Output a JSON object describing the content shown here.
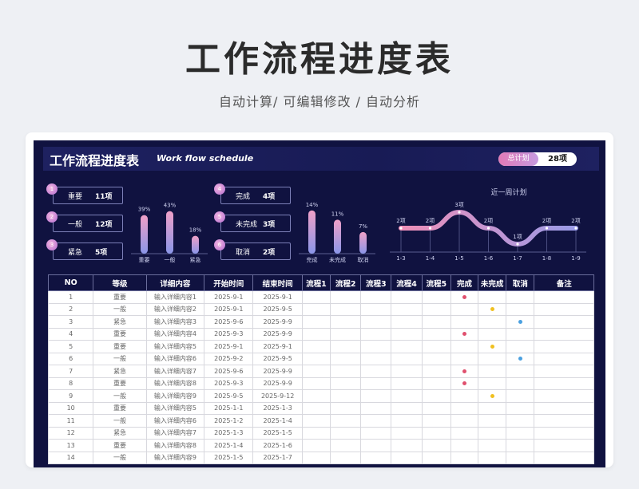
{
  "page": {
    "title": "工作流程进度表",
    "subtitle": "自动计算/ 可编辑修改 / 自动分析"
  },
  "sheet": {
    "title": "工作流程进度表",
    "subtitle": "Work flow schedule",
    "total_label": "总计划",
    "total_value": "28项"
  },
  "priority_kpis": [
    {
      "badge": "1",
      "name": "重要",
      "value": "11项"
    },
    {
      "badge": "2",
      "name": "一般",
      "value": "12项"
    },
    {
      "badge": "3",
      "name": "紧急",
      "value": "5项"
    }
  ],
  "status_kpis": [
    {
      "badge": "4",
      "name": "完成",
      "value": "4项"
    },
    {
      "badge": "5",
      "name": "未完成",
      "value": "3项"
    },
    {
      "badge": "6",
      "name": "取消",
      "value": "2项"
    }
  ],
  "colors": {
    "dot_done": "#e0506e",
    "dot_pending": "#f0c020",
    "dot_cancel": "#4aa0e0",
    "bar_top": "#f0a0c8",
    "bar_bottom": "#8a96e8"
  },
  "chart_data": [
    {
      "type": "bar",
      "categories": [
        "重要",
        "一般",
        "紧急"
      ],
      "values": [
        39,
        43,
        18
      ],
      "labels": [
        "39%",
        "43%",
        "18%"
      ],
      "ylim": [
        0,
        50
      ]
    },
    {
      "type": "bar",
      "categories": [
        "完成",
        "未完成",
        "取消"
      ],
      "values": [
        14,
        11,
        7
      ],
      "labels": [
        "14%",
        "11%",
        "7%"
      ],
      "ylim": [
        0,
        16
      ]
    },
    {
      "type": "line",
      "title": "近一周计划",
      "categories": [
        "1-3",
        "1-4",
        "1-5",
        "1-6",
        "1-7",
        "1-8",
        "1-9"
      ],
      "values": [
        2,
        2,
        3,
        2,
        1,
        2,
        2
      ],
      "labels": [
        "2项",
        "2项",
        "3项",
        "2项",
        "1项",
        "2项",
        "2项"
      ],
      "ylim": [
        0,
        4
      ]
    }
  ],
  "table": {
    "headers": [
      "NO",
      "等级",
      "详细内容",
      "开始时间",
      "结束时间",
      "流程1",
      "流程2",
      "流程3",
      "流程4",
      "流程5",
      "完成",
      "未完成",
      "取消",
      "备注"
    ],
    "rows": [
      {
        "no": "1",
        "level": "重要",
        "detail": "输入详细内容1",
        "start": "2025-9-1",
        "end": "2025-9-1",
        "status": "done"
      },
      {
        "no": "2",
        "level": "一般",
        "detail": "输入详细内容2",
        "start": "2025-9-1",
        "end": "2025-9-5",
        "status": "pending"
      },
      {
        "no": "3",
        "level": "紧急",
        "detail": "输入详细内容3",
        "start": "2025-9-6",
        "end": "2025-9-9",
        "status": "cancel"
      },
      {
        "no": "4",
        "level": "重要",
        "detail": "输入详细内容4",
        "start": "2025-9-3",
        "end": "2025-9-9",
        "status": "done"
      },
      {
        "no": "5",
        "level": "重要",
        "detail": "输入详细内容5",
        "start": "2025-9-1",
        "end": "2025-9-1",
        "status": "pending"
      },
      {
        "no": "6",
        "level": "一般",
        "detail": "输入详细内容6",
        "start": "2025-9-2",
        "end": "2025-9-5",
        "status": "cancel"
      },
      {
        "no": "7",
        "level": "紧急",
        "detail": "输入详细内容7",
        "start": "2025-9-6",
        "end": "2025-9-9",
        "status": "done"
      },
      {
        "no": "8",
        "level": "重要",
        "detail": "输入详细内容8",
        "start": "2025-9-3",
        "end": "2025-9-9",
        "status": "done"
      },
      {
        "no": "9",
        "level": "一般",
        "detail": "输入详细内容9",
        "start": "2025-9-5",
        "end": "2025-9-12",
        "status": "pending"
      },
      {
        "no": "10",
        "level": "重要",
        "detail": "输入详细内容5",
        "start": "2025-1-1",
        "end": "2025-1-3",
        "status": ""
      },
      {
        "no": "11",
        "level": "一般",
        "detail": "输入详细内容6",
        "start": "2025-1-2",
        "end": "2025-1-4",
        "status": ""
      },
      {
        "no": "12",
        "level": "紧急",
        "detail": "输入详细内容7",
        "start": "2025-1-3",
        "end": "2025-1-5",
        "status": ""
      },
      {
        "no": "13",
        "level": "重要",
        "detail": "输入详细内容8",
        "start": "2025-1-4",
        "end": "2025-1-6",
        "status": ""
      },
      {
        "no": "14",
        "level": "一般",
        "detail": "输入详细内容9",
        "start": "2025-1-5",
        "end": "2025-1-7",
        "status": ""
      }
    ]
  }
}
